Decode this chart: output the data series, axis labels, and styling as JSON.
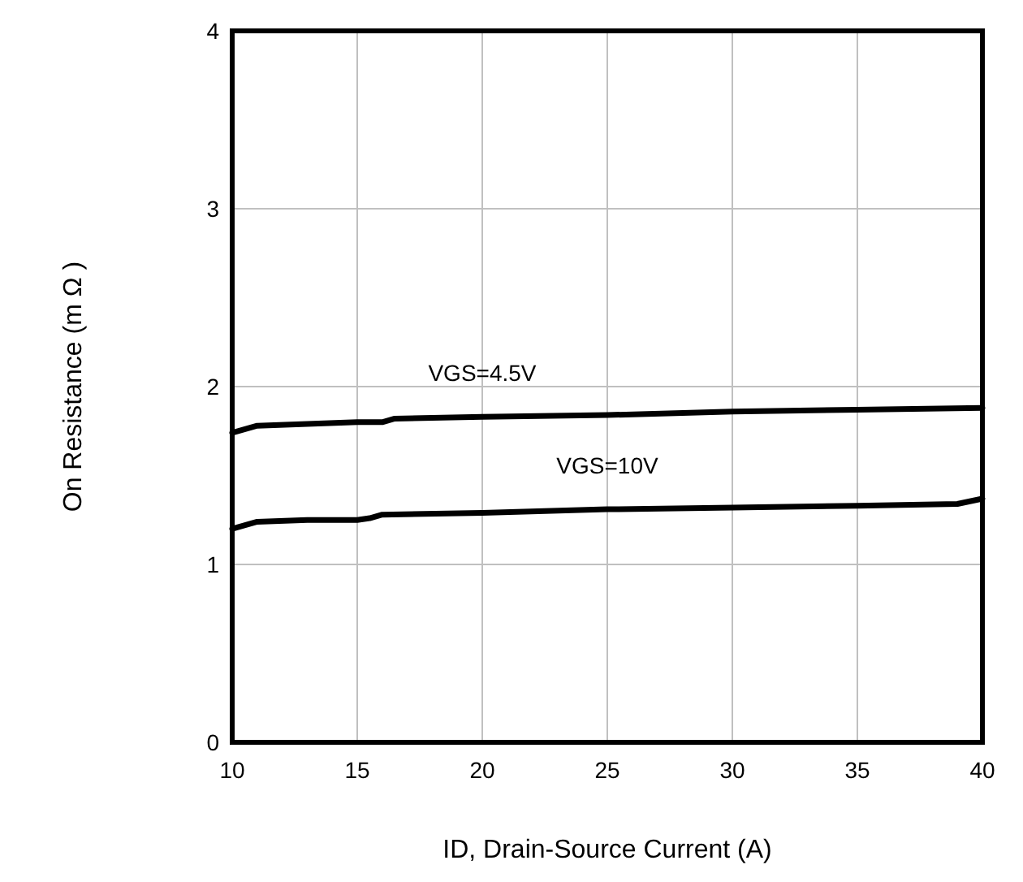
{
  "chart_data": {
    "type": "line",
    "xlabel": "ID, Drain-Source Current (A)",
    "ylabel": "On Resistance (m Ω )",
    "xlim": [
      10,
      40
    ],
    "xticks": [
      10,
      15,
      20,
      25,
      30,
      35,
      40
    ],
    "ylim": [
      0,
      4
    ],
    "yticks": [
      0,
      1,
      2,
      3,
      4
    ],
    "grid": true,
    "marker": "none",
    "line_style": "solid",
    "series": [
      {
        "name": "VGS=4.5V",
        "color": "#000000",
        "x": [
          10,
          11,
          13,
          15,
          16,
          16.5,
          20,
          25,
          30,
          35,
          40
        ],
        "values": [
          1.74,
          1.78,
          1.79,
          1.8,
          1.8,
          1.82,
          1.83,
          1.84,
          1.86,
          1.87,
          1.88
        ]
      },
      {
        "name": "VGS=10V",
        "color": "#000000",
        "x": [
          10,
          11,
          13,
          15,
          15.5,
          16,
          20,
          25,
          30,
          35,
          39,
          40
        ],
        "values": [
          1.2,
          1.24,
          1.25,
          1.25,
          1.26,
          1.28,
          1.29,
          1.31,
          1.32,
          1.33,
          1.34,
          1.37
        ]
      }
    ]
  }
}
